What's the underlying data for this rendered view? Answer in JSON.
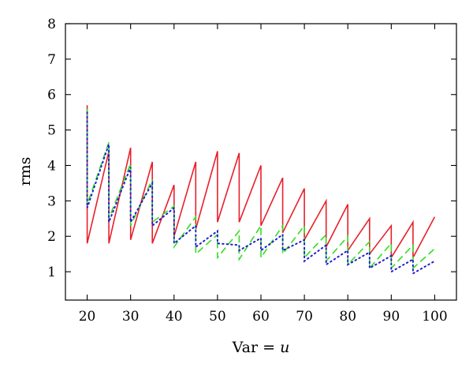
{
  "chart_data": {
    "type": "line",
    "title": "",
    "xlabel_parts": [
      "Var = ",
      "u"
    ],
    "ylabel": "rms",
    "xlim": [
      15,
      105
    ],
    "ylim": [
      0.2,
      8
    ],
    "xticks": [
      20,
      30,
      40,
      50,
      60,
      70,
      80,
      90,
      100
    ],
    "yticks": [
      1,
      2,
      3,
      4,
      5,
      6,
      7,
      8
    ],
    "grid": false,
    "legend": "none",
    "series": [
      {
        "color": "#e8202a",
        "dash": "solid",
        "x": [
          20,
          20,
          25,
          25,
          30,
          30,
          35,
          35,
          40,
          40,
          45,
          45,
          50,
          50,
          55,
          55,
          60,
          60,
          65,
          65,
          70,
          70,
          75,
          75,
          80,
          80,
          85,
          85,
          90,
          90,
          95,
          95,
          100
        ],
        "y": [
          5.7,
          1.8,
          4.4,
          1.8,
          4.5,
          1.9,
          4.1,
          1.8,
          3.45,
          2.0,
          4.1,
          2.2,
          4.4,
          2.4,
          4.35,
          2.4,
          4.0,
          2.3,
          3.65,
          2.1,
          3.35,
          1.9,
          3.0,
          1.7,
          2.9,
          1.6,
          2.5,
          1.5,
          2.3,
          1.4,
          2.4,
          1.4,
          2.55
        ]
      },
      {
        "color": "#33dd22",
        "dash": "dashed",
        "x": [
          20,
          20,
          25,
          25,
          30,
          30,
          35,
          35,
          40,
          40,
          45,
          45,
          50,
          50,
          55,
          55,
          60,
          60,
          65,
          65,
          70,
          70,
          75,
          75,
          80,
          80,
          85,
          85,
          90,
          90,
          95,
          95,
          100
        ],
        "y": [
          5.6,
          2.9,
          4.65,
          2.5,
          4.05,
          2.3,
          3.6,
          2.4,
          2.85,
          1.7,
          2.55,
          1.5,
          2.05,
          1.4,
          2.15,
          1.35,
          2.3,
          1.4,
          2.3,
          1.5,
          2.3,
          1.4,
          2.05,
          1.3,
          2.0,
          1.2,
          1.85,
          1.1,
          1.8,
          1.1,
          1.75,
          1.1,
          1.65
        ]
      },
      {
        "color": "#1f1fcc",
        "dash": "dotted",
        "x": [
          20,
          20,
          25,
          25,
          30,
          30,
          35,
          35,
          40,
          40,
          45,
          45,
          50,
          50,
          55,
          55,
          60,
          60,
          65,
          65,
          70,
          70,
          75,
          75,
          80,
          80,
          85,
          85,
          90,
          90,
          95,
          95,
          100
        ],
        "y": [
          5.5,
          2.8,
          4.6,
          2.4,
          3.95,
          2.4,
          3.5,
          2.3,
          2.8,
          1.8,
          2.3,
          1.7,
          2.15,
          1.8,
          1.75,
          1.6,
          1.95,
          1.6,
          2.05,
          1.6,
          1.9,
          1.3,
          1.75,
          1.2,
          1.6,
          1.2,
          1.55,
          1.1,
          1.45,
          1.0,
          1.35,
          0.95,
          1.3
        ]
      }
    ]
  }
}
